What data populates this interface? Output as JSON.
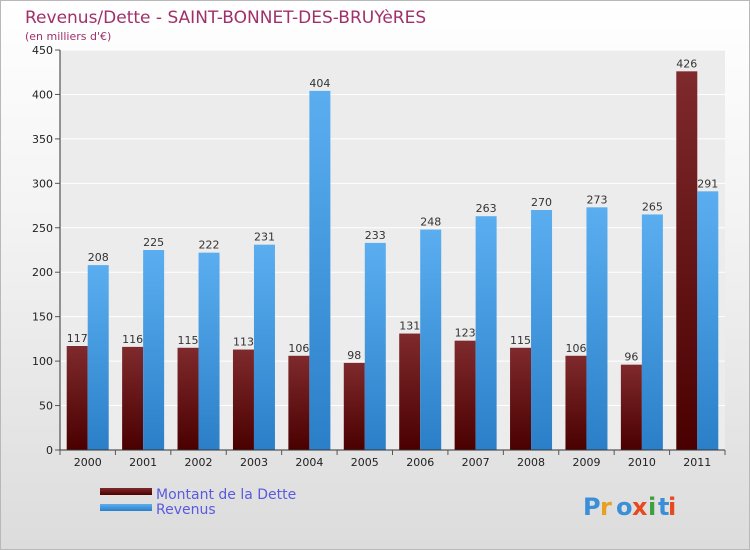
{
  "chart_data": {
    "type": "bar",
    "title": "Revenus/Dette - SAINT-BONNET-DES-BRUYèRES",
    "subtitle": "(en milliers d'€)",
    "categories": [
      "2000",
      "2001",
      "2002",
      "2003",
      "2004",
      "2005",
      "2006",
      "2007",
      "2008",
      "2009",
      "2010",
      "2011"
    ],
    "series": [
      {
        "name": "Montant de la Dette",
        "color": "#6e0f12",
        "values": [
          117,
          116,
          115,
          113,
          106,
          98,
          131,
          123,
          115,
          106,
          96,
          426
        ]
      },
      {
        "name": "Revenus",
        "color": "#3d9be0",
        "values": [
          208,
          225,
          222,
          231,
          404,
          233,
          248,
          263,
          270,
          273,
          265,
          291
        ]
      }
    ],
    "ylim": [
      0,
      450
    ],
    "yticks": [
      0,
      50,
      100,
      150,
      200,
      250,
      300,
      350,
      400,
      450
    ],
    "grid": true,
    "legend_position": "bottom-left"
  },
  "logo": {
    "text": "Proxiti"
  }
}
